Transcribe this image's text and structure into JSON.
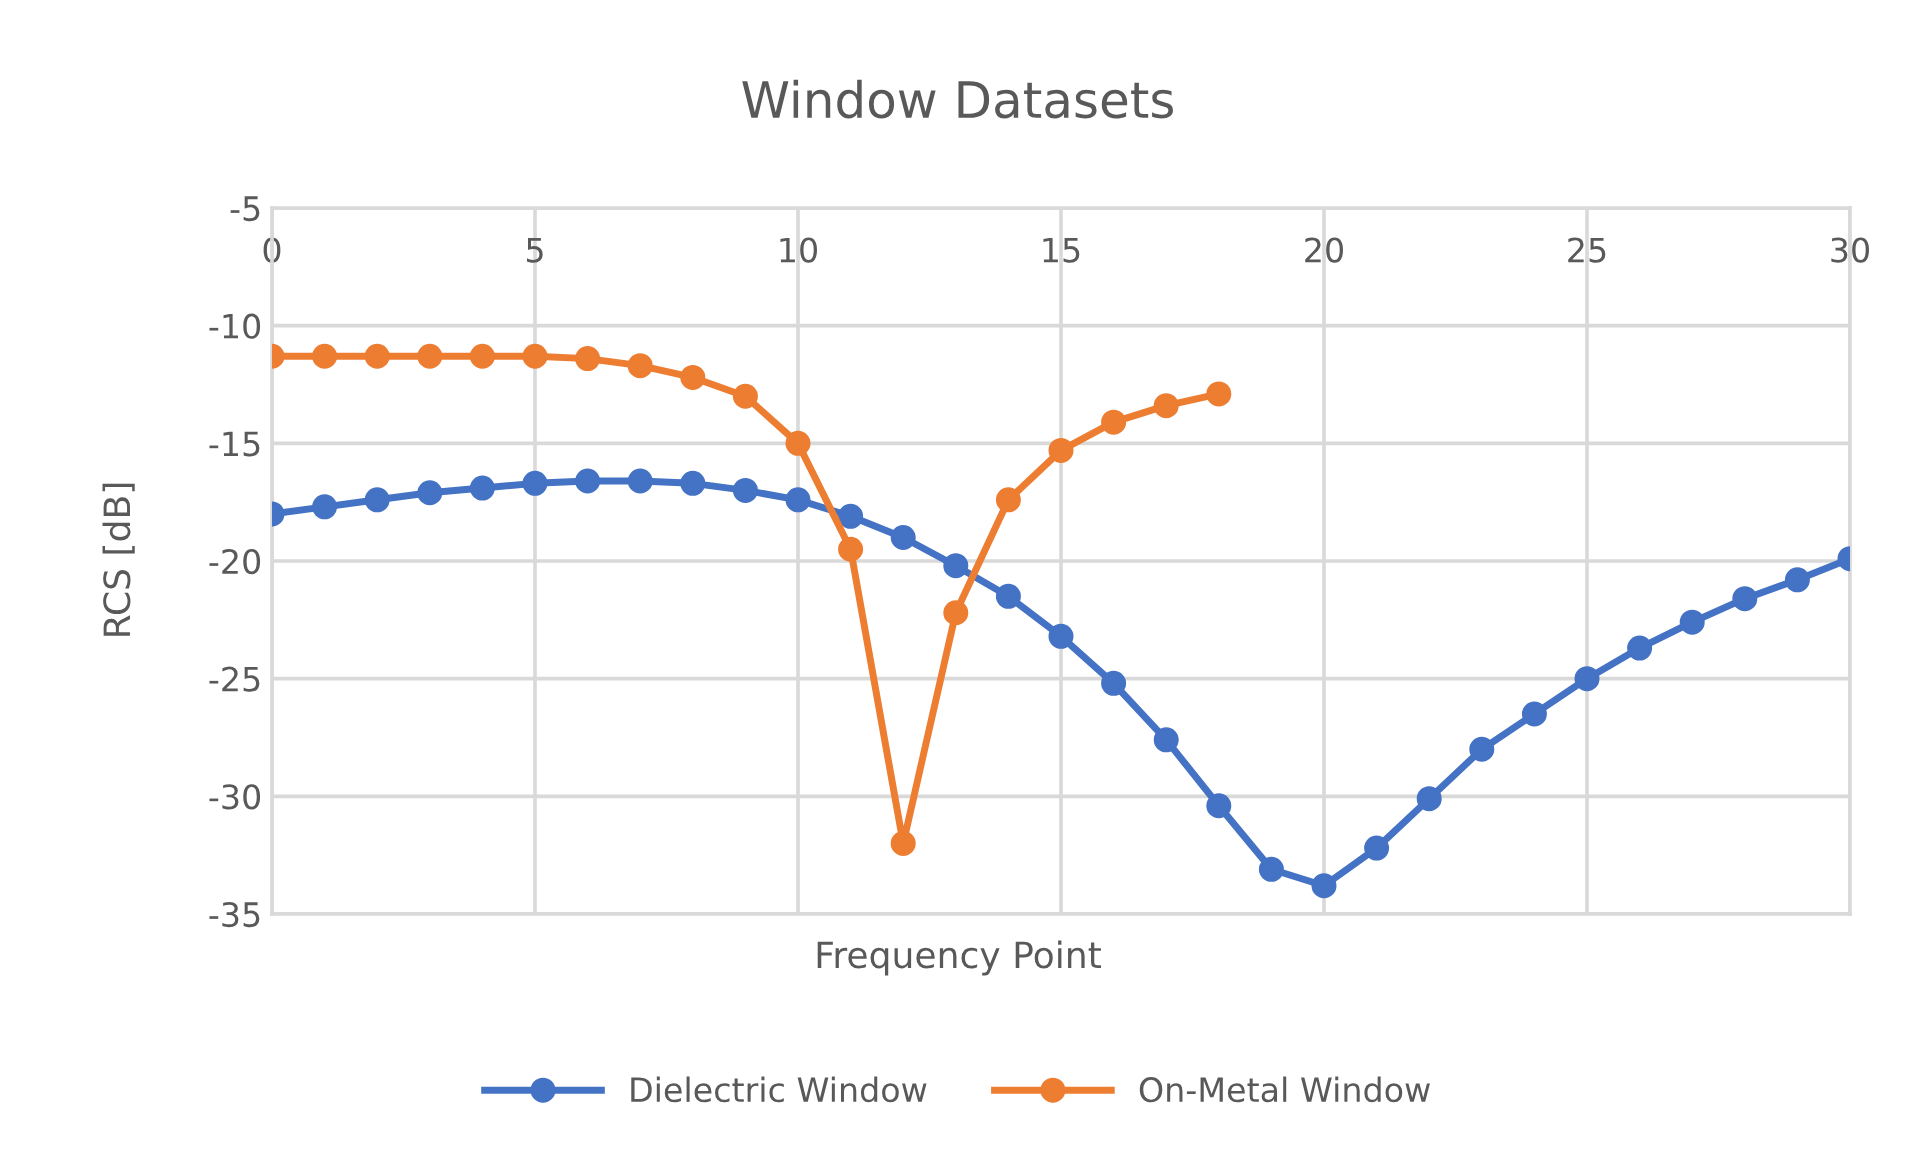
{
  "chart_data": {
    "type": "line",
    "title": "Window Datasets",
    "xlabel": "Frequency Point",
    "ylabel": "RCS [dB]",
    "xlim": [
      0,
      30
    ],
    "xticks": [
      0,
      5,
      10,
      15,
      20,
      25,
      30
    ],
    "ylim": [
      -35,
      -5
    ],
    "yticks": [
      -35,
      -30,
      -25,
      -20,
      -15,
      -10,
      -5
    ],
    "grid": true,
    "legend": "bottom",
    "marker": "circle",
    "series": [
      {
        "name": "Dielectric Window",
        "color": "#4472c4",
        "x": [
          0,
          1,
          2,
          3,
          4,
          5,
          6,
          7,
          8,
          9,
          10,
          11,
          12,
          13,
          14,
          15,
          16,
          17,
          18,
          19,
          20,
          21,
          22,
          23,
          24,
          25,
          26,
          27,
          28,
          29,
          30
        ],
        "values": [
          -18.0,
          -17.7,
          -17.4,
          -17.1,
          -16.9,
          -16.7,
          -16.6,
          -16.6,
          -16.7,
          -17.0,
          -17.4,
          -18.1,
          -19.0,
          -20.2,
          -21.5,
          -23.2,
          -25.2,
          -27.6,
          -30.4,
          -33.1,
          -33.8,
          -32.2,
          -30.1,
          -28.0,
          -26.5,
          -25.0,
          -23.7,
          -22.6,
          -21.6,
          -20.8,
          -19.9
        ]
      },
      {
        "name": "On-Metal Window",
        "color": "#ed7d31",
        "x": [
          0,
          1,
          2,
          3,
          4,
          5,
          6,
          7,
          8,
          9,
          10,
          11,
          12,
          13,
          14,
          15,
          16,
          17,
          18
        ],
        "values": [
          -11.3,
          -11.3,
          -11.3,
          -11.3,
          -11.3,
          -11.3,
          -11.4,
          -11.7,
          -12.2,
          -13.0,
          -15.0,
          -19.5,
          -32.0,
          -22.2,
          -17.4,
          -15.3,
          -14.1,
          -13.4,
          -12.9
        ]
      }
    ]
  }
}
